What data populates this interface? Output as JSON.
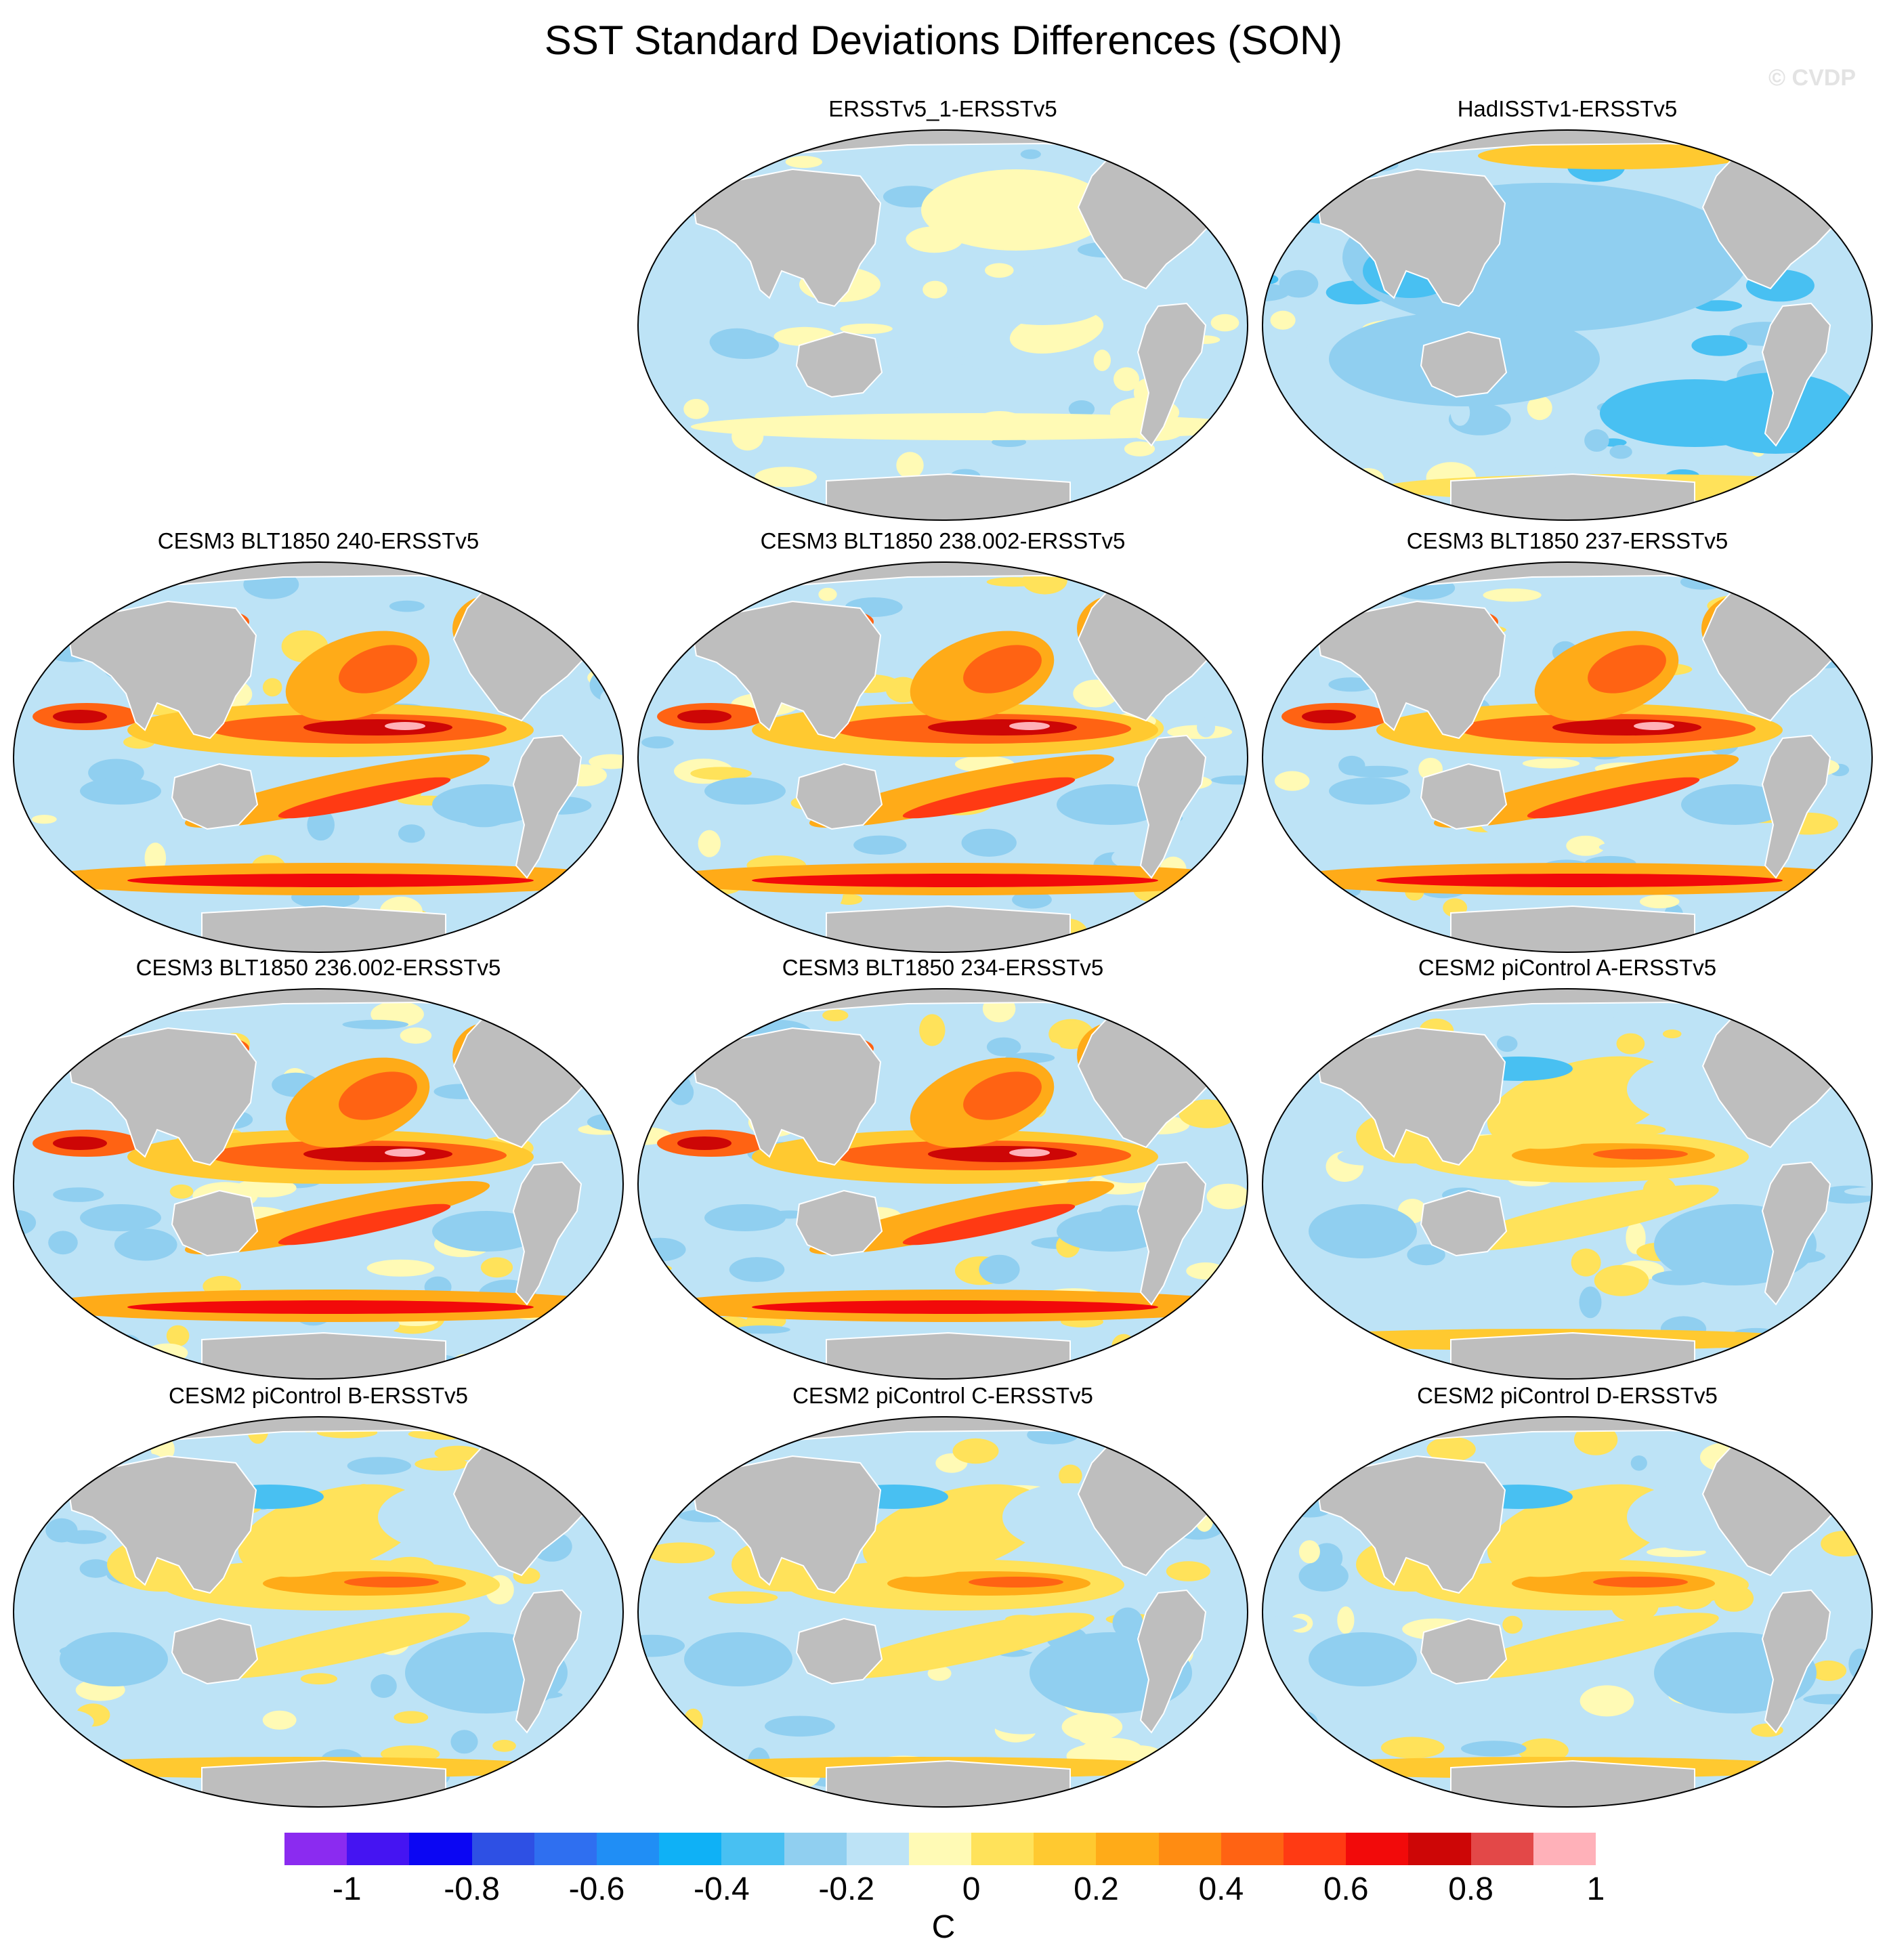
{
  "title": "SST Standard Deviations Differences (SON)",
  "watermark": "© CVDP",
  "panels": [
    {
      "title": "ERSSTv5_1-ERSSTv5",
      "pattern": "weak"
    },
    {
      "title": "HadISSTv1-ERSSTv5",
      "pattern": "cool"
    },
    {
      "title": "CESM3 BLT1850 240-ERSSTv5",
      "pattern": "strong"
    },
    {
      "title": "CESM3 BLT1850 238.002-ERSSTv5",
      "pattern": "strong"
    },
    {
      "title": "CESM3 BLT1850 237-ERSSTv5",
      "pattern": "strong"
    },
    {
      "title": "CESM3 BLT1850 236.002-ERSSTv5",
      "pattern": "strong"
    },
    {
      "title": "CESM3 BLT1850 234-ERSSTv5",
      "pattern": "strong"
    },
    {
      "title": "CESM2 piControl A-ERSSTv5",
      "pattern": "moderate"
    },
    {
      "title": "CESM2 piControl B-ERSSTv5",
      "pattern": "moderate"
    },
    {
      "title": "CESM2 piControl C-ERSSTv5",
      "pattern": "moderate"
    },
    {
      "title": "CESM2 piControl D-ERSSTv5",
      "pattern": "moderate"
    }
  ],
  "colorbar": {
    "colors": [
      "#8b2bf0",
      "#4514f2",
      "#0b06f3",
      "#2e50e4",
      "#2f6ff0",
      "#208ef5",
      "#0fb1f6",
      "#48c0f2",
      "#90cff0",
      "#bde3f6",
      "#fffab5",
      "#ffe25a",
      "#ffc930",
      "#ffab18",
      "#ff8c12",
      "#ff6313",
      "#ff3a13",
      "#f20a0a",
      "#cd0606",
      "#e34848",
      "#ffb1b9"
    ],
    "labels": [
      "-1",
      "-0.8",
      "-0.6",
      "-0.4",
      "-0.2",
      "0",
      "0.2",
      "0.4",
      "0.6",
      "0.8",
      "1"
    ],
    "units": "C"
  },
  "colors": {
    "land": "#bebebe",
    "ocean_neutral": "#bde3f6",
    "land_outline": "#ffffff"
  }
}
